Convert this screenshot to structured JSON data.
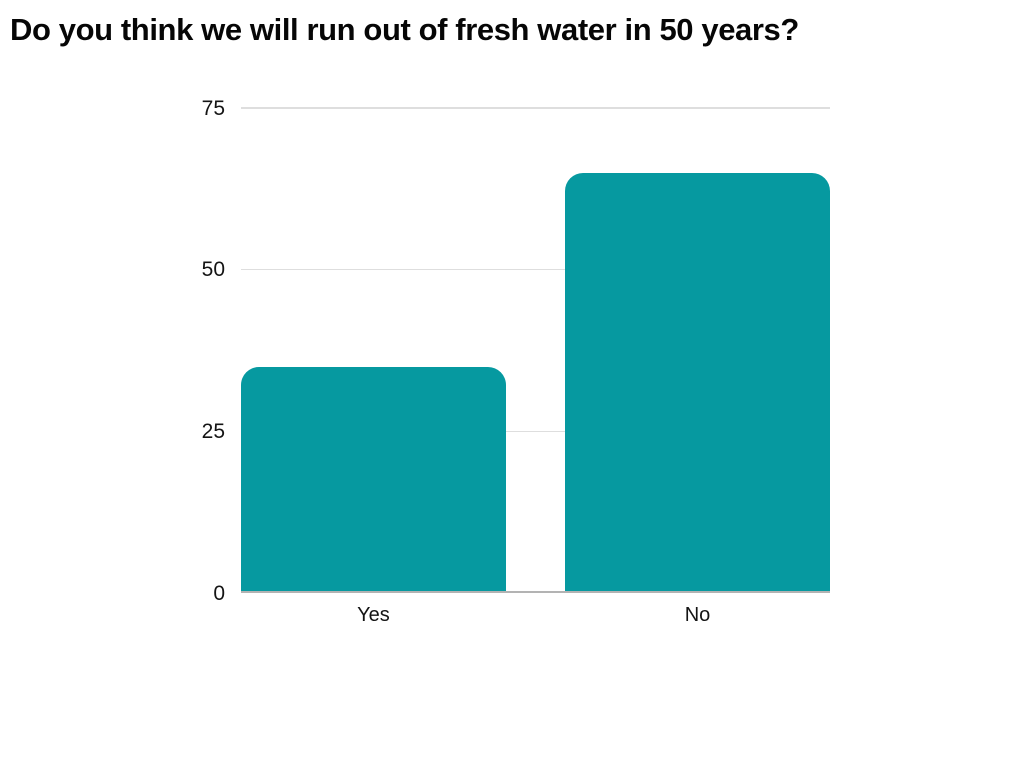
{
  "chart_data": {
    "type": "bar",
    "title": "Do you think we will run out of fresh water in 50 years?",
    "categories": [
      "Yes",
      "No"
    ],
    "values": [
      35,
      65
    ],
    "xlabel": "",
    "ylabel": "",
    "ylim": [
      0,
      75
    ],
    "yticks": [
      0,
      25,
      50,
      75
    ],
    "grid": true,
    "legend": false,
    "layout": {
      "gridlines_behind_bars": true,
      "bar_corner": "rounded-top"
    },
    "colors": {
      "bar": "#0699a0",
      "gridline": "#dedede",
      "baseline": "#b3b3b3",
      "tick_text": "#141414",
      "title_text": "#060606",
      "background": "#ffffff"
    }
  }
}
